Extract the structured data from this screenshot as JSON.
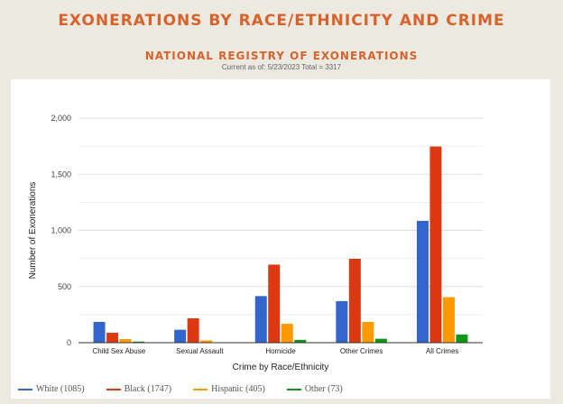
{
  "header": {
    "title": "EXONERATIONS BY RACE/ETHNICITY AND CRIME",
    "subtitle": "NATIONAL REGISTRY OF EXONERATIONS",
    "note": "Current as of: 5/23/2023 Total = 3317"
  },
  "chart_data": {
    "type": "bar",
    "xlabel": "Crime by Race/Ethnicity",
    "ylabel": "Number of Exonerations",
    "ylim": [
      0,
      2000
    ],
    "yticks": [
      0,
      500,
      1000,
      1500,
      2000
    ],
    "ytick_labels": [
      "0",
      "500",
      "1,000",
      "1,500",
      "2,000"
    ],
    "grid": true,
    "legend_position": "bottom-left",
    "categories": [
      "Child Sex Abuse",
      "Sexual Assault",
      "Homicide",
      "Other Crimes",
      "All Crimes"
    ],
    "series": [
      {
        "name": "White (1085)",
        "color": "#3366cc",
        "values": [
          185,
          115,
          415,
          370,
          1085
        ]
      },
      {
        "name": "Black (1747)",
        "color": "#dc3912",
        "values": [
          88,
          217,
          695,
          747,
          1747
        ]
      },
      {
        "name": "Hispanic (405)",
        "color": "#ff9900",
        "values": [
          32,
          20,
          168,
          185,
          405
        ]
      },
      {
        "name": "Other (73)",
        "color": "#109618",
        "values": [
          10,
          3,
          25,
          35,
          73
        ]
      }
    ]
  }
}
